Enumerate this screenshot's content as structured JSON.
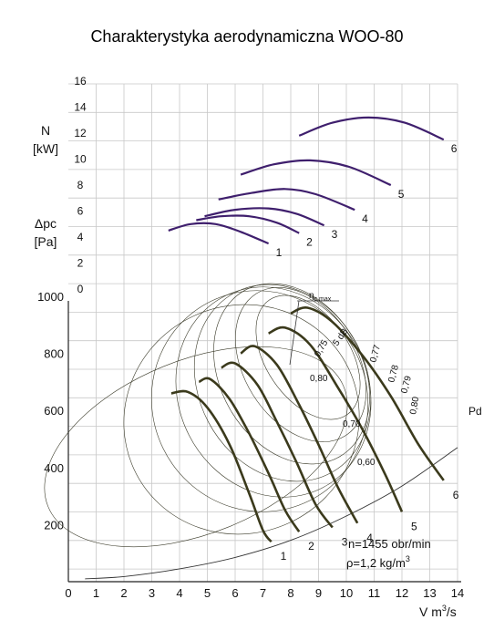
{
  "chart_data": {
    "type": "line",
    "title": "Charakterystyka aerodynamiczna WOO-80",
    "xlabel": "V m³/s",
    "xlabel_parts": {
      "main": "V m",
      "sup": "3",
      "tail": "/s"
    },
    "ylabel_lower": [
      "Δpc",
      "[Pa]"
    ],
    "ylabel_upper": [
      "N",
      "[kW]"
    ],
    "x_ticks": [
      "0",
      "1",
      "2",
      "3",
      "4",
      "5",
      "6",
      "7",
      "8",
      "9",
      "10",
      "11",
      "12",
      "13",
      "14"
    ],
    "y_ticks": [
      "200",
      "400",
      "600",
      "800",
      "1000"
    ],
    "n_ticks": [
      "0",
      "2",
      "4",
      "6",
      "8",
      "10",
      "12",
      "14",
      "16"
    ],
    "xlim": [
      0,
      14
    ],
    "ylim_pressure": [
      0,
      1000
    ],
    "ylim_power": [
      0,
      16
    ],
    "grid": true,
    "pressure_curves": [
      {
        "label": "1",
        "points": [
          [
            3.7,
            660
          ],
          [
            4.3,
            665
          ],
          [
            5.0,
            610
          ],
          [
            5.8,
            480
          ],
          [
            6.5,
            310
          ],
          [
            7.0,
            180
          ],
          [
            7.3,
            140
          ]
        ]
      },
      {
        "label": "2",
        "points": [
          [
            4.7,
            700
          ],
          [
            5.1,
            710
          ],
          [
            5.8,
            640
          ],
          [
            6.5,
            520
          ],
          [
            7.2,
            380
          ],
          [
            7.8,
            250
          ],
          [
            8.3,
            175
          ]
        ]
      },
      {
        "label": "3",
        "points": [
          [
            5.5,
            750
          ],
          [
            6.0,
            765
          ],
          [
            6.8,
            690
          ],
          [
            7.5,
            560
          ],
          [
            8.2,
            420
          ],
          [
            8.9,
            270
          ],
          [
            9.5,
            190
          ]
        ]
      },
      {
        "label": "4",
        "points": [
          [
            6.2,
            800
          ],
          [
            6.7,
            825
          ],
          [
            7.5,
            760
          ],
          [
            8.3,
            620
          ],
          [
            9.0,
            480
          ],
          [
            9.7,
            330
          ],
          [
            10.4,
            205
          ]
        ]
      },
      {
        "label": "5",
        "points": [
          [
            7.2,
            870
          ],
          [
            7.8,
            890
          ],
          [
            8.7,
            830
          ],
          [
            9.7,
            680
          ],
          [
            10.6,
            530
          ],
          [
            11.4,
            375
          ],
          [
            12.0,
            245
          ]
        ]
      },
      {
        "label": "6",
        "points": [
          [
            8.0,
            940
          ],
          [
            8.6,
            960
          ],
          [
            9.5,
            910
          ],
          [
            10.6,
            790
          ],
          [
            11.6,
            650
          ],
          [
            12.6,
            480
          ],
          [
            13.5,
            355
          ]
        ]
      }
    ],
    "power_curves": [
      {
        "label": "1",
        "points": [
          [
            3.6,
            4.5
          ],
          [
            4.4,
            5.0
          ],
          [
            5.3,
            5.0
          ],
          [
            6.2,
            4.4
          ],
          [
            7.2,
            3.5
          ]
        ]
      },
      {
        "label": "2",
        "points": [
          [
            4.6,
            5.3
          ],
          [
            5.5,
            5.6
          ],
          [
            6.5,
            5.6
          ],
          [
            7.5,
            5.1
          ],
          [
            8.3,
            4.3
          ]
        ]
      },
      {
        "label": "3",
        "points": [
          [
            4.9,
            5.6
          ],
          [
            6.0,
            6.1
          ],
          [
            7.2,
            6.2
          ],
          [
            8.2,
            5.8
          ],
          [
            9.2,
            4.9
          ]
        ]
      },
      {
        "label": "4",
        "points": [
          [
            5.4,
            6.9
          ],
          [
            6.6,
            7.4
          ],
          [
            7.8,
            7.7
          ],
          [
            8.9,
            7.3
          ],
          [
            10.3,
            6.1
          ]
        ]
      },
      {
        "label": "5",
        "points": [
          [
            6.2,
            8.8
          ],
          [
            7.4,
            9.6
          ],
          [
            8.7,
            9.9
          ],
          [
            10.1,
            9.4
          ],
          [
            11.6,
            8.0
          ]
        ]
      },
      {
        "label": "6",
        "points": [
          [
            8.3,
            11.8
          ],
          [
            9.5,
            12.8
          ],
          [
            10.8,
            13.2
          ],
          [
            12.1,
            12.8
          ],
          [
            13.5,
            11.5
          ]
        ]
      }
    ],
    "system_curve": {
      "label": "Pd",
      "points": [
        [
          0.6,
          10
        ],
        [
          2,
          18
        ],
        [
          4,
          45
        ],
        [
          6,
          85
        ],
        [
          8,
          145
        ],
        [
          10,
          230
        ],
        [
          12,
          335
        ],
        [
          14,
          470
        ]
      ]
    },
    "efficiency_labels": [
      "0,60",
      "0,70",
      "0,75",
      "0,77",
      "0,78",
      "0,79",
      "0,80",
      "0,80"
    ],
    "db_label": "5 dB",
    "eta_label": {
      "main": "η",
      "sub": "c max"
    },
    "note_speed": "n=1455 obr/min",
    "note_density": {
      "main": "ρ=1,2 kg/m",
      "sup": "3"
    }
  },
  "colors": {
    "pressure": "#3b3a1c",
    "power": "#3f1f6d",
    "grid": "#c8c8c8",
    "axis": "#222222"
  }
}
